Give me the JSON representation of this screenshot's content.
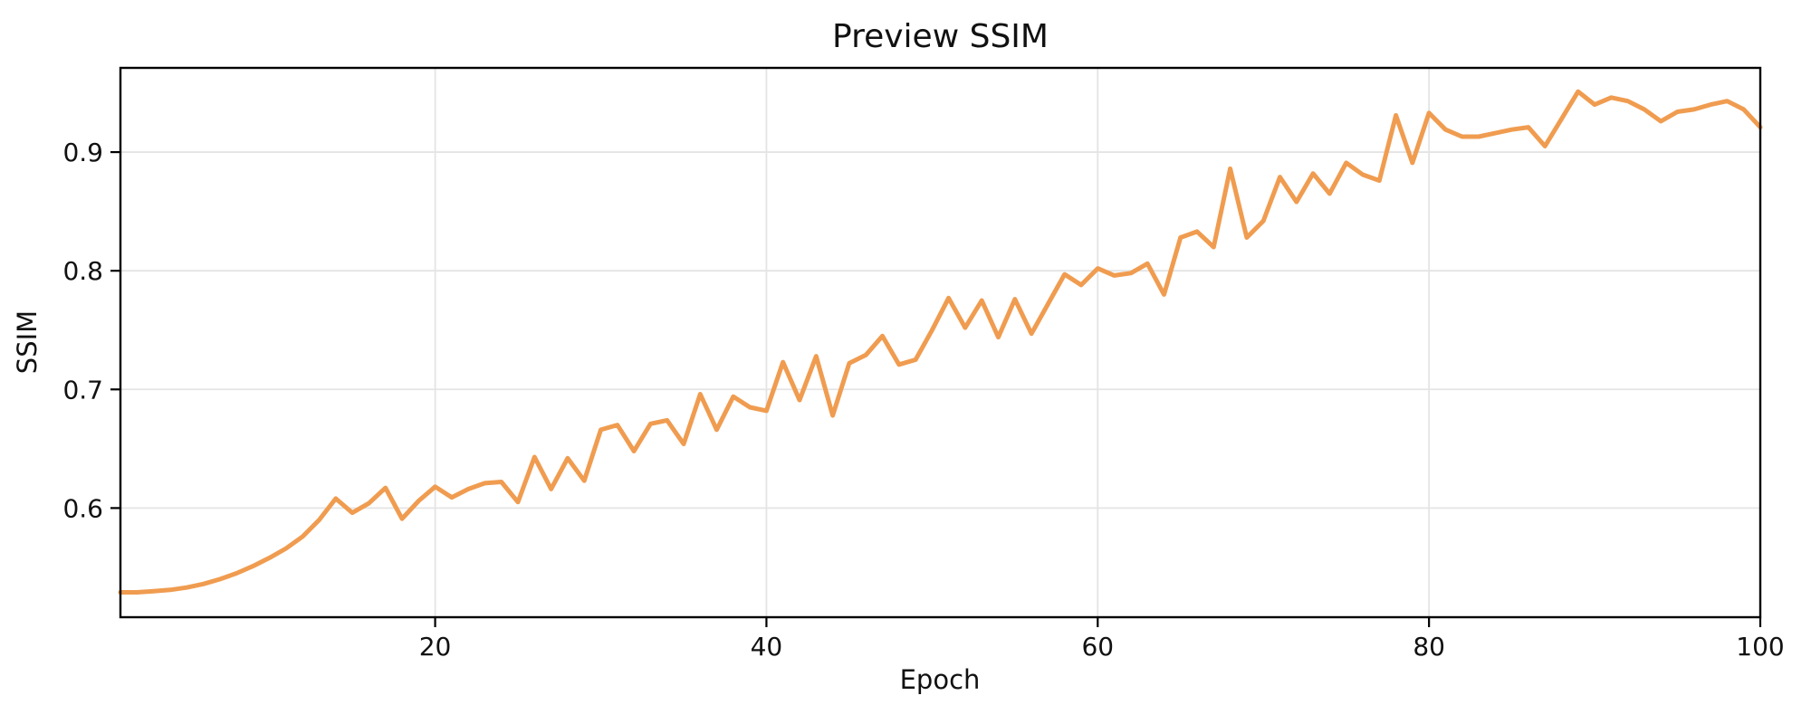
{
  "chart_data": {
    "type": "line",
    "title": "Preview SSIM",
    "xlabel": "Epoch",
    "ylabel": "SSIM",
    "x_start": 1,
    "epoch_step": 1,
    "xlim": [
      1,
      100
    ],
    "ylim": [
      0.508,
      0.971
    ],
    "xticks": [
      20,
      40,
      60,
      80,
      100
    ],
    "yticks": [
      0.6,
      0.7,
      0.8,
      0.9
    ],
    "xtick_labels": [
      "20",
      "40",
      "60",
      "80",
      "100"
    ],
    "ytick_labels": [
      "0.6",
      "0.7",
      "0.8",
      "0.9"
    ],
    "grid": true,
    "legend": "none",
    "line_color": "#F09C50",
    "grid_color": "#E4E4E4",
    "spine_color": "#000000",
    "values": [
      0.529,
      0.529,
      0.53,
      0.531,
      0.533,
      0.536,
      0.54,
      0.545,
      0.551,
      0.558,
      0.566,
      0.576,
      0.59,
      0.608,
      0.596,
      0.604,
      0.617,
      0.591,
      0.606,
      0.618,
      0.609,
      0.616,
      0.621,
      0.622,
      0.605,
      0.643,
      0.616,
      0.642,
      0.623,
      0.666,
      0.67,
      0.648,
      0.671,
      0.674,
      0.654,
      0.696,
      0.666,
      0.694,
      0.685,
      0.682,
      0.723,
      0.691,
      0.728,
      0.678,
      0.722,
      0.729,
      0.745,
      0.721,
      0.725,
      0.75,
      0.777,
      0.752,
      0.775,
      0.744,
      0.776,
      0.747,
      0.772,
      0.797,
      0.788,
      0.802,
      0.796,
      0.798,
      0.806,
      0.78,
      0.828,
      0.833,
      0.82,
      0.886,
      0.828,
      0.842,
      0.879,
      0.858,
      0.882,
      0.865,
      0.891,
      0.881,
      0.876,
      0.931,
      0.891,
      0.933,
      0.919,
      0.913,
      0.913,
      0.916,
      0.919,
      0.921,
      0.905,
      0.928,
      0.951,
      0.94,
      0.946,
      0.943,
      0.936,
      0.926,
      0.934,
      0.936,
      0.94,
      0.943,
      0.936,
      0.921
    ]
  }
}
